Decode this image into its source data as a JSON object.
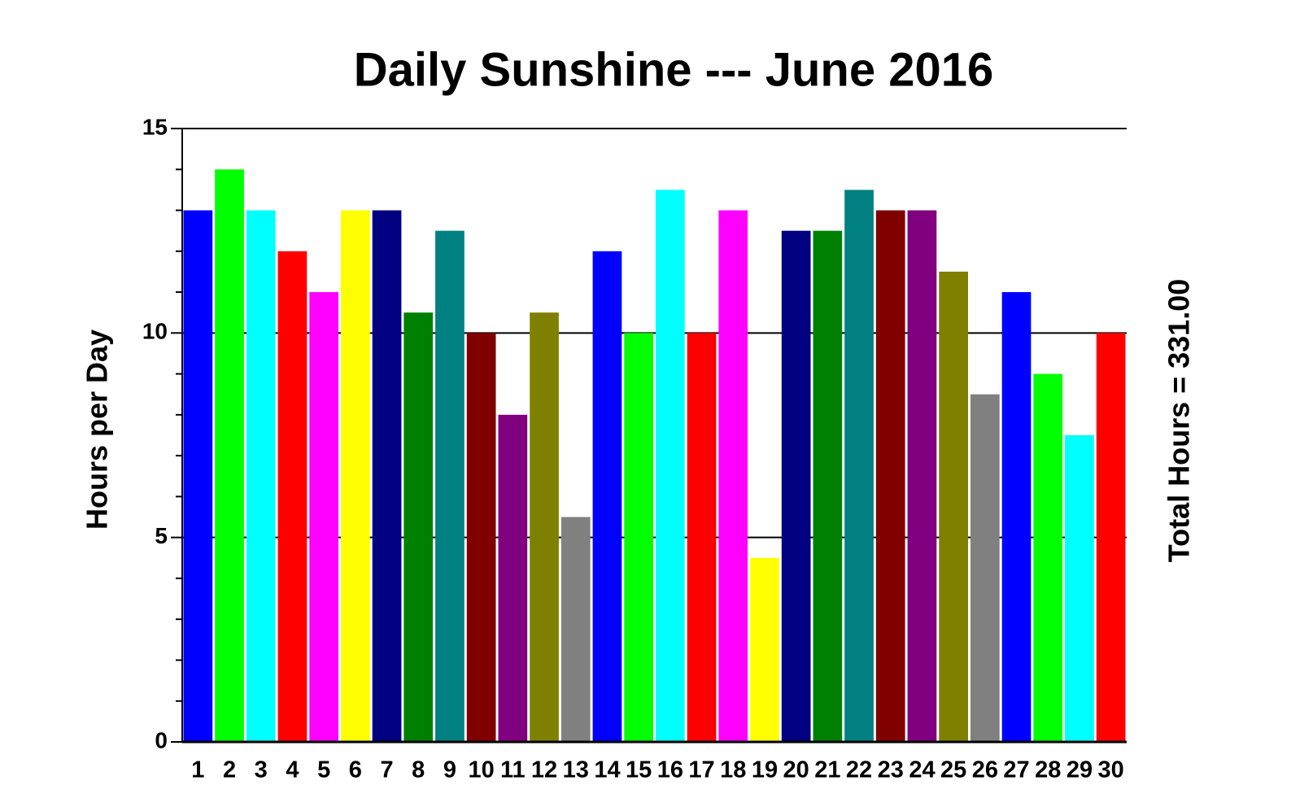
{
  "chart_data": {
    "type": "bar",
    "title": "Daily Sunshine --- June 2016",
    "y_label": "Hours per Day",
    "annotation": "Total Hours = 331.00",
    "categories": [
      "1",
      "2",
      "3",
      "4",
      "5",
      "6",
      "7",
      "8",
      "9",
      "10",
      "11",
      "12",
      "13",
      "14",
      "15",
      "16",
      "17",
      "18",
      "19",
      "20",
      "21",
      "22",
      "23",
      "24",
      "25",
      "26",
      "27",
      "28",
      "29",
      "30"
    ],
    "values": [
      13,
      14,
      13,
      12,
      11,
      13,
      13,
      10.5,
      12.5,
      10,
      8,
      10.5,
      5.5,
      12,
      10,
      13.5,
      10,
      13,
      4.5,
      12.5,
      12.5,
      13.5,
      13,
      13,
      11.5,
      8.5,
      11,
      9,
      7.5,
      10
    ],
    "colors": [
      "#0000ff",
      "#00ff00",
      "#00ffff",
      "#ff0000",
      "#ff00ff",
      "#ffff00",
      "#000080",
      "#008000",
      "#008080",
      "#800000",
      "#800080",
      "#808000",
      "#808080",
      "#0000ff",
      "#00ff00",
      "#00ffff",
      "#ff0000",
      "#ff00ff",
      "#ffff00",
      "#000080",
      "#008000",
      "#008080",
      "#800000",
      "#800080",
      "#808000",
      "#808080",
      "#0000ff",
      "#00ff00",
      "#00ffff",
      "#ff0000"
    ],
    "ylim": [
      0,
      15
    ],
    "yticks": [
      0,
      5,
      10,
      15
    ],
    "yticks_minor": [
      1,
      2,
      3,
      4,
      6,
      7,
      8,
      9,
      11,
      12,
      13,
      14
    ],
    "grid": true
  }
}
